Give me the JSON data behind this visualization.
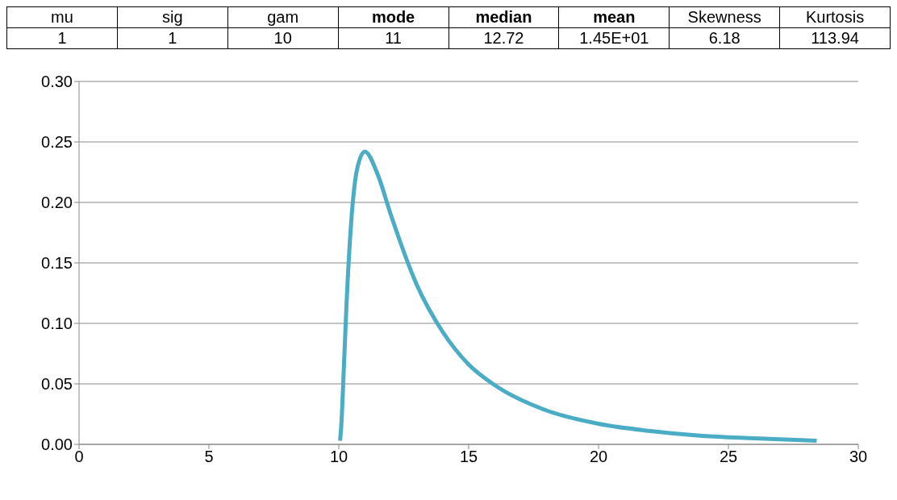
{
  "chart_data": {
    "type": "line",
    "annotations": [
      "mu",
      "sig",
      "gam",
      "mode",
      "median",
      "mean",
      "Skewness",
      "Kurtosis",
      "1",
      "1",
      "10",
      "11",
      "12.72",
      "1.45E+01",
      "6.18",
      "113.94"
    ],
    "x": [
      10.05,
      10.1,
      10.2,
      10.3,
      10.5,
      10.7,
      11,
      11.5,
      12,
      13,
      14,
      15,
      16,
      18,
      20,
      22,
      24,
      26,
      28.4
    ],
    "series": [
      {
        "color": "#4bacc6",
        "values": [
          0.003,
          0.017,
          0.066,
          0.117,
          0.19,
          0.227,
          0.242,
          0.223,
          0.19,
          0.132,
          0.093,
          0.066,
          0.049,
          0.028,
          0.017,
          0.011,
          0.007,
          0.005,
          0.003
        ]
      }
    ],
    "xlim": [
      0,
      30
    ],
    "xticks": [
      0,
      5,
      10,
      15,
      20,
      25,
      30
    ],
    "ylim": [
      0,
      0.3
    ],
    "yticks": [
      {
        "value": 0,
        "label": "0.00"
      },
      {
        "value": 0.05,
        "label": "0.05"
      },
      {
        "value": 0.1,
        "label": "0.10"
      },
      {
        "value": 0.15,
        "label": "0.15"
      },
      {
        "value": 0.2,
        "label": "0.20"
      },
      {
        "value": 0.25,
        "label": "0.25"
      },
      {
        "value": 0.3,
        "label": "0.30"
      }
    ],
    "grid": "y",
    "marker": "none",
    "line_style": "solid"
  }
}
